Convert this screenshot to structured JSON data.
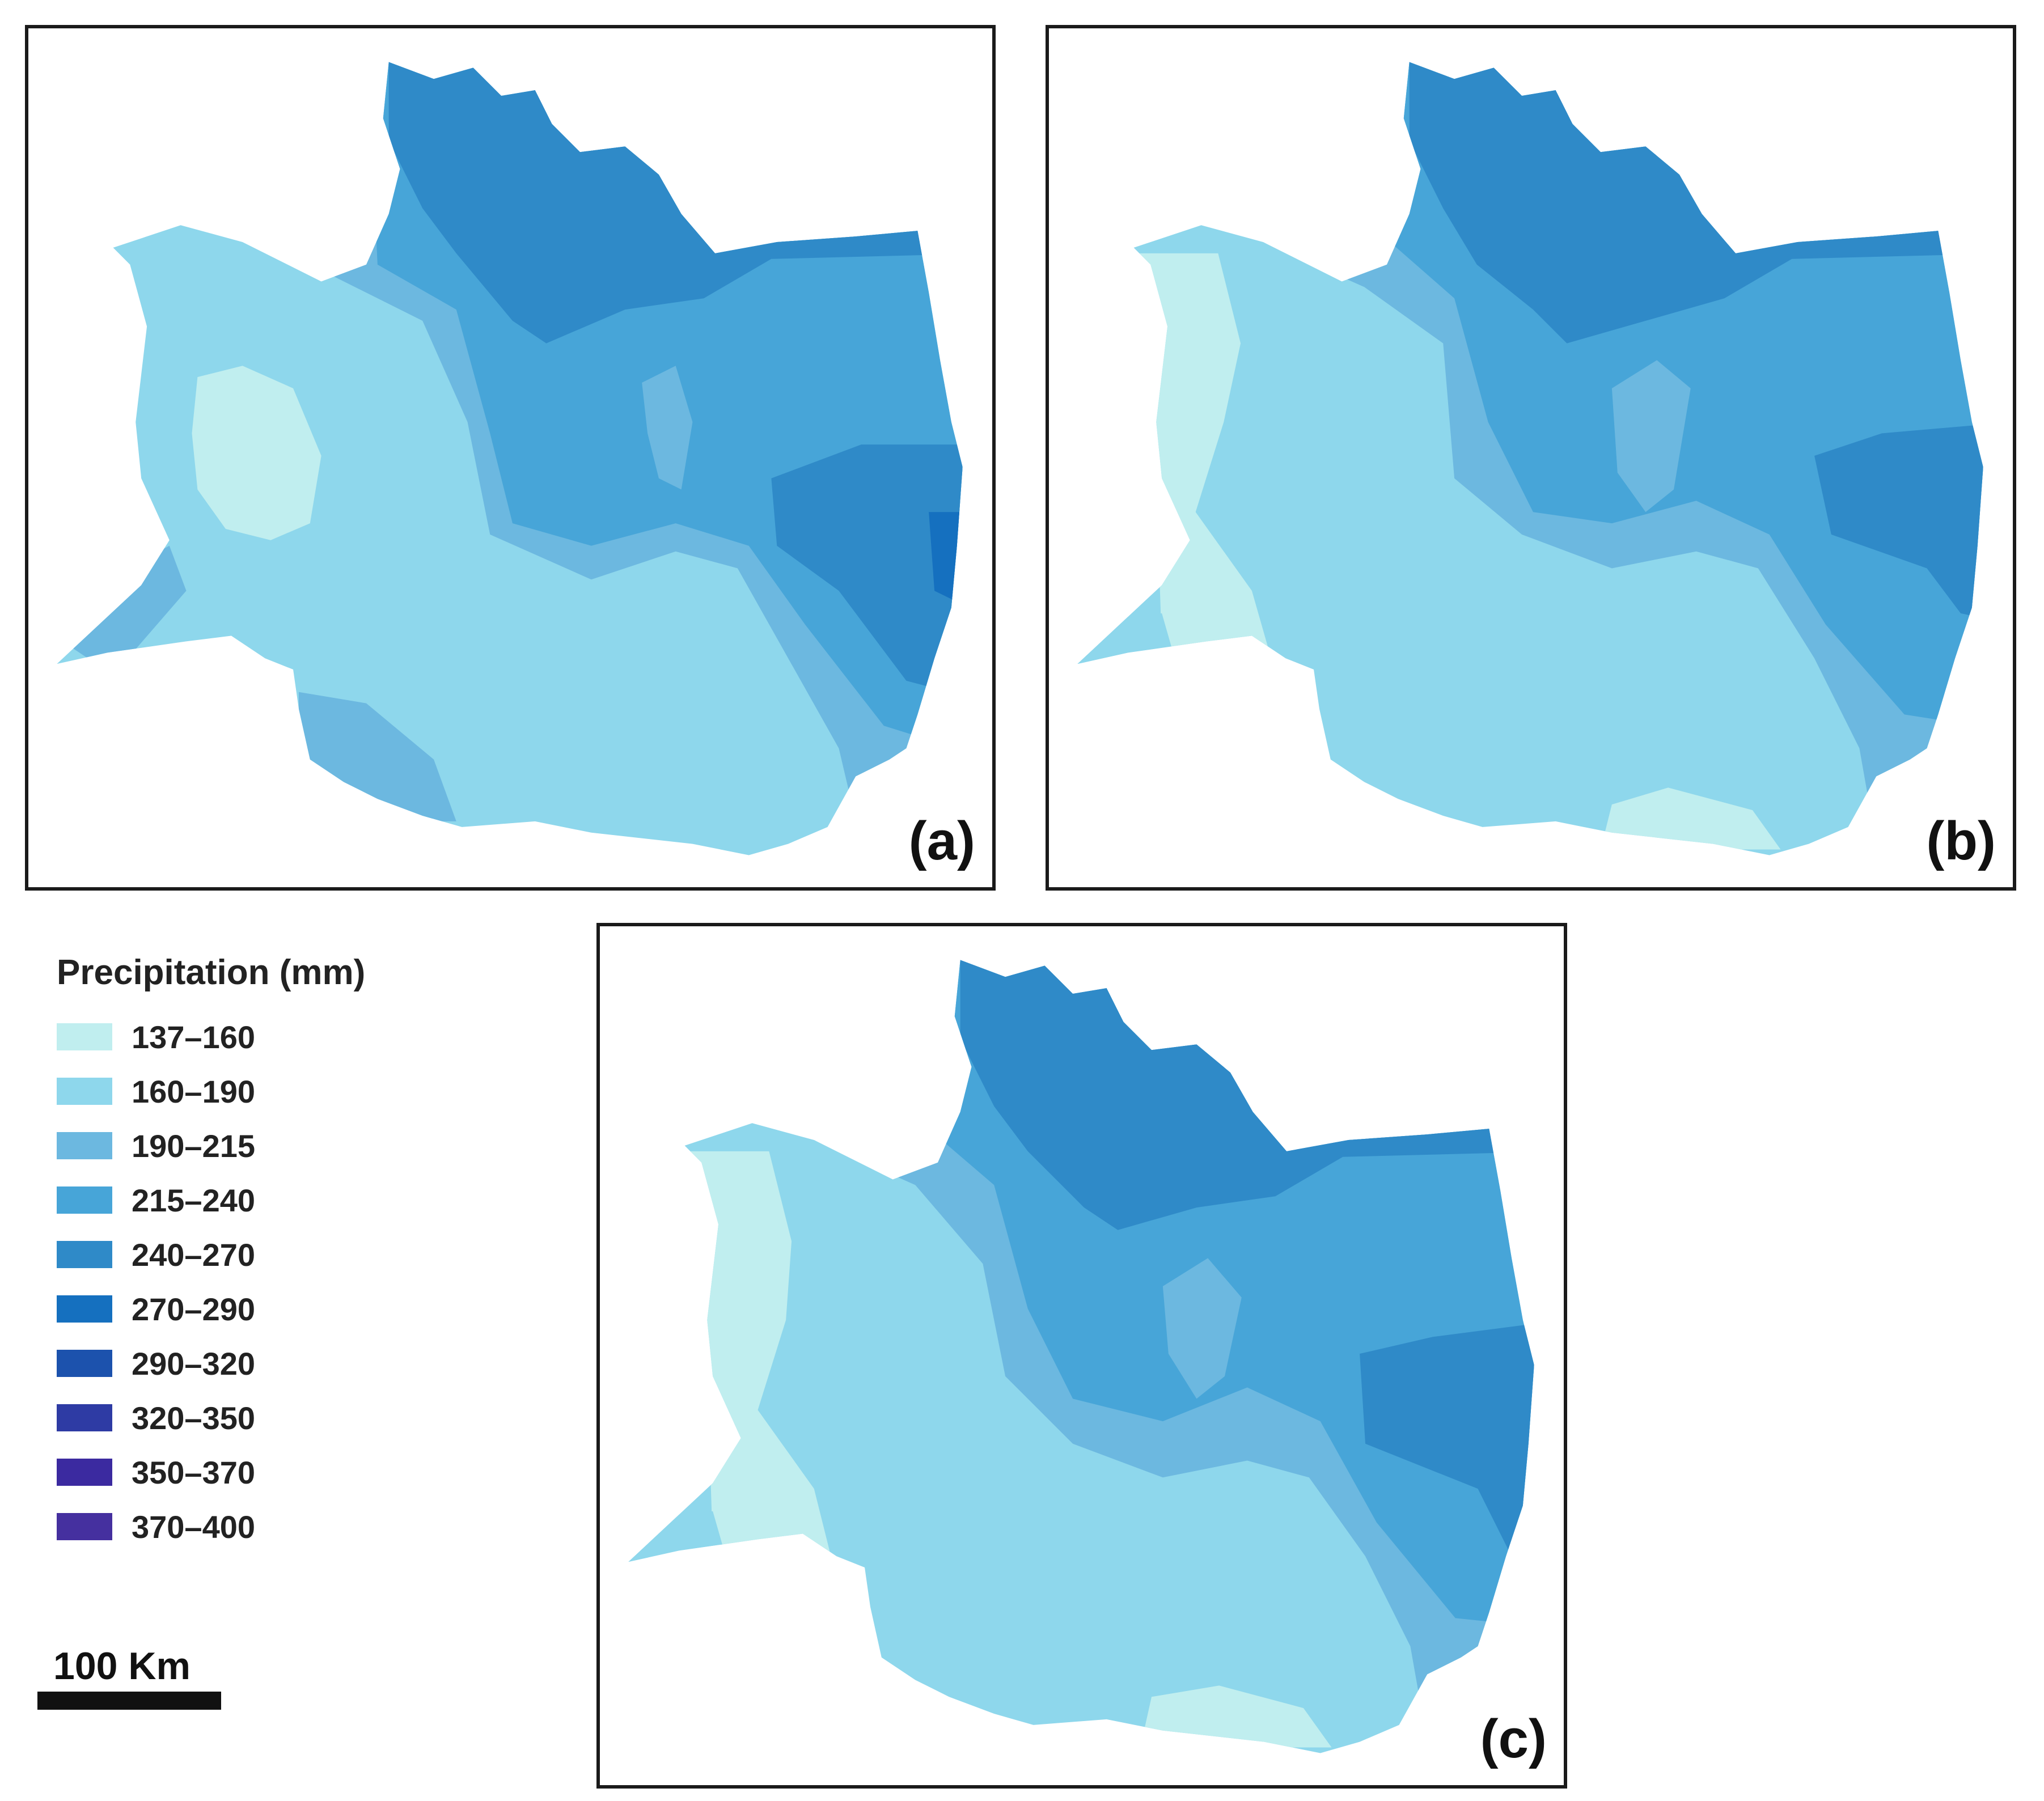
{
  "panels": [
    {
      "id": "a",
      "label": "(a)"
    },
    {
      "id": "b",
      "label": "(b)"
    },
    {
      "id": "c",
      "label": "(c)"
    }
  ],
  "legend": {
    "title": "Precipitation (mm)",
    "items": [
      {
        "label": "137–160",
        "color": "#c0eeef"
      },
      {
        "label": "160–190",
        "color": "#8ed7ec"
      },
      {
        "label": "190–215",
        "color": "#6cb8e0"
      },
      {
        "label": "215–240",
        "color": "#47a5d8"
      },
      {
        "label": "240–270",
        "color": "#2f8ac8"
      },
      {
        "label": "270–290",
        "color": "#1570bf"
      },
      {
        "label": "290–320",
        "color": "#1c52ad"
      },
      {
        "label": "320–350",
        "color": "#2e3ba4"
      },
      {
        "label": "350–370",
        "color": "#3b2aa0"
      },
      {
        "label": "370–400",
        "color": "#45309f"
      }
    ]
  },
  "scale_bar": {
    "label": "100 Km"
  }
}
